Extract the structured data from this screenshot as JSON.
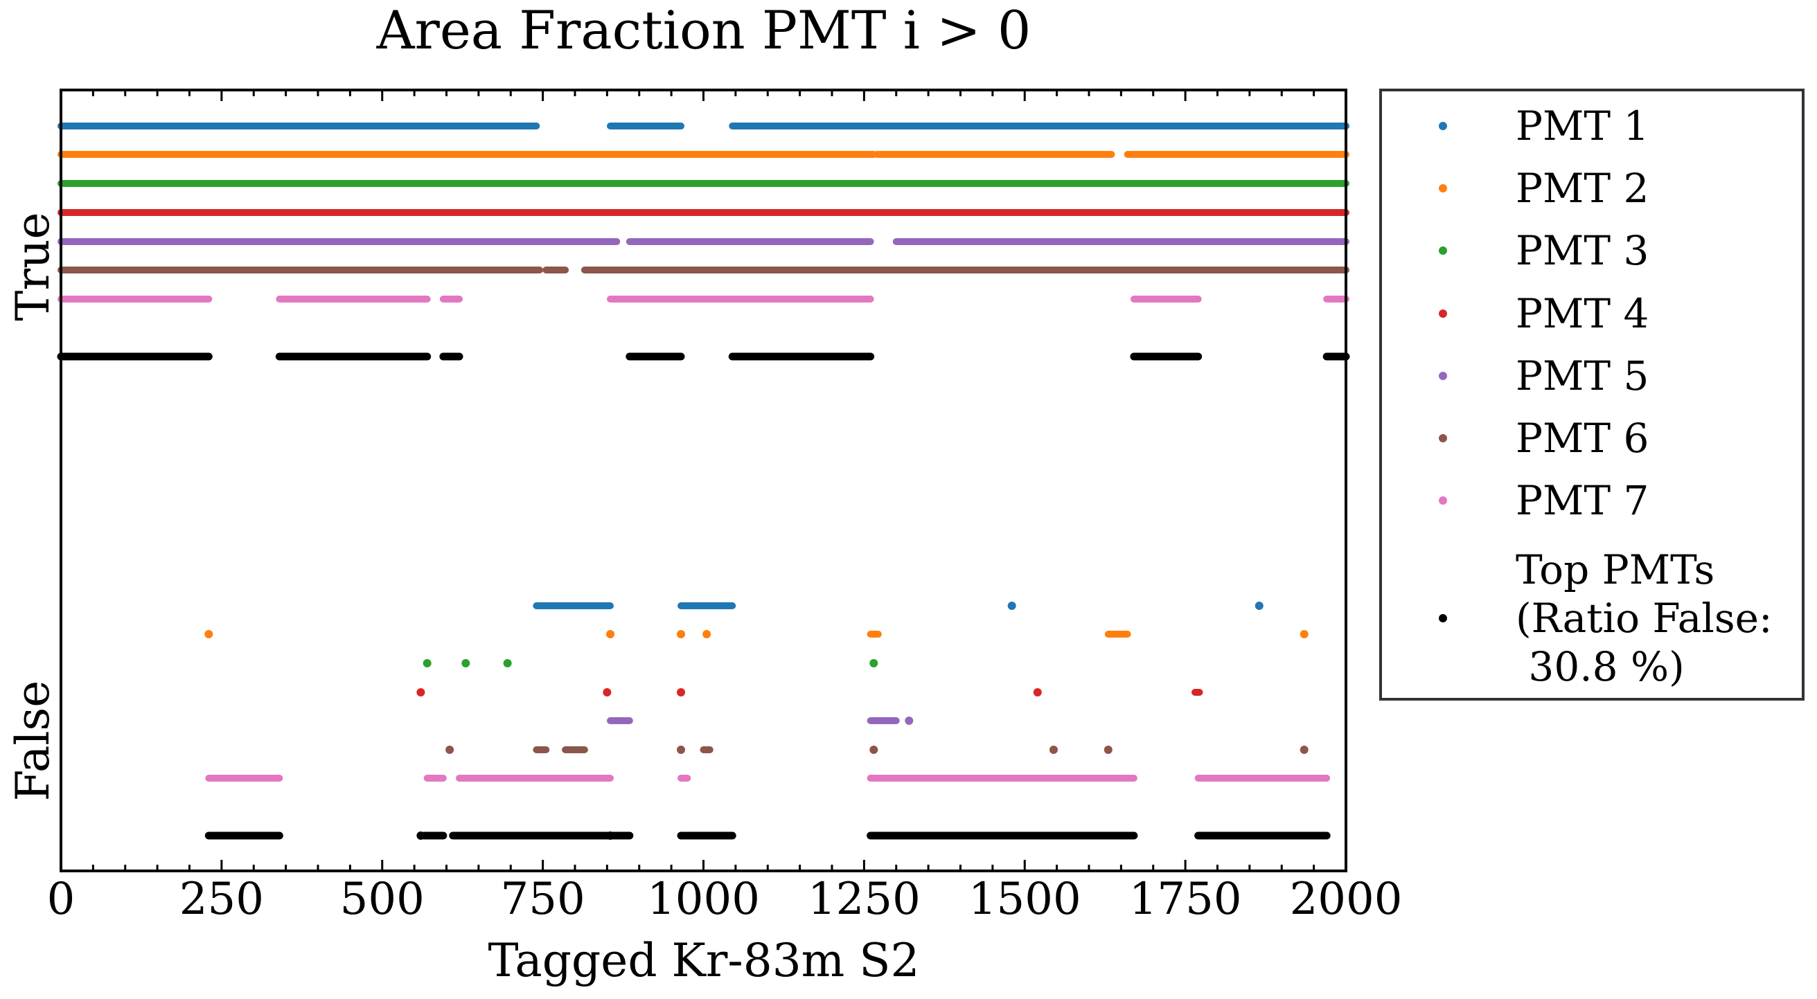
{
  "chart_data": {
    "type": "scatter",
    "title": "Area Fraction PMT i > 0",
    "xlabel": "Tagged Kr-83m S2",
    "ylabel": "",
    "xlim": [
      0,
      2000
    ],
    "xticks": [
      0,
      250,
      500,
      750,
      1000,
      1250,
      1500,
      1750,
      2000
    ],
    "x_tick_labels": [
      "0",
      "250",
      "500",
      "750",
      "1000",
      "1250",
      "1500",
      "1750",
      "2000"
    ],
    "y_categories": [
      "True",
      "False"
    ],
    "grid": false,
    "legend_position": "outside-right",
    "series": [
      {
        "name": "PMT 1",
        "color": "#1f77b4",
        "true_segments": [
          [
            0,
            740
          ],
          [
            855,
            965
          ],
          [
            1045,
            2000
          ]
        ],
        "false_segments": [
          [
            740,
            855
          ],
          [
            965,
            1045
          ]
        ],
        "false_points": [
          1480,
          1865
        ]
      },
      {
        "name": "PMT 2",
        "color": "#ff7f0e",
        "true_segments": [
          [
            0,
            1265
          ],
          [
            1270,
            1635
          ],
          [
            1660,
            2000
          ]
        ],
        "false_segments": [
          [
            1260,
            1272
          ],
          [
            1630,
            1660
          ]
        ],
        "false_points": [
          230,
          855,
          965,
          1005,
          1935
        ]
      },
      {
        "name": "PMT 3",
        "color": "#2ca02c",
        "true_segments": [
          [
            0,
            2000
          ]
        ],
        "false_segments": [],
        "false_points": [
          570,
          630,
          695,
          1265
        ]
      },
      {
        "name": "PMT 4",
        "color": "#d62728",
        "true_segments": [
          [
            0,
            2000
          ]
        ],
        "false_segments": [
          [
            1765,
            1772
          ]
        ],
        "false_points": [
          560,
          850,
          965,
          1520
        ]
      },
      {
        "name": "PMT 5",
        "color": "#9467bd",
        "true_segments": [
          [
            0,
            865
          ],
          [
            885,
            1260
          ],
          [
            1300,
            2000
          ]
        ],
        "false_segments": [
          [
            855,
            885
          ],
          [
            1260,
            1300
          ]
        ],
        "false_points": [
          1320
        ]
      },
      {
        "name": "PMT 6",
        "color": "#8c564b",
        "true_segments": [
          [
            0,
            745
          ],
          [
            755,
            785
          ],
          [
            815,
            2000
          ]
        ],
        "false_segments": [
          [
            740,
            755
          ],
          [
            785,
            815
          ],
          [
            1000,
            1010
          ]
        ],
        "false_points": [
          605,
          965,
          1265,
          1545,
          1630,
          1935
        ]
      },
      {
        "name": "PMT 7",
        "color": "#e377c2",
        "true_segments": [
          [
            0,
            230
          ],
          [
            340,
            570
          ],
          [
            595,
            620
          ],
          [
            855,
            1260
          ],
          [
            1670,
            1770
          ],
          [
            1970,
            2000
          ]
        ],
        "false_segments": [
          [
            230,
            340
          ],
          [
            570,
            595
          ],
          [
            620,
            855
          ],
          [
            965,
            975
          ],
          [
            1260,
            1670
          ],
          [
            1770,
            1970
          ]
        ],
        "false_points": []
      },
      {
        "name": "Top PMTs\n(Ratio False:\n 30.8 %)",
        "color": "#000000",
        "true_segments": [
          [
            0,
            230
          ],
          [
            340,
            570
          ],
          [
            595,
            620
          ],
          [
            885,
            965
          ],
          [
            1045,
            1260
          ],
          [
            1670,
            1770
          ],
          [
            1970,
            2000
          ]
        ],
        "false_segments": [
          [
            230,
            340
          ],
          [
            565,
            595
          ],
          [
            610,
            885
          ],
          [
            965,
            1045
          ],
          [
            1260,
            1670
          ],
          [
            1770,
            1970
          ]
        ],
        "false_points": [
          560,
          855
        ]
      }
    ]
  }
}
